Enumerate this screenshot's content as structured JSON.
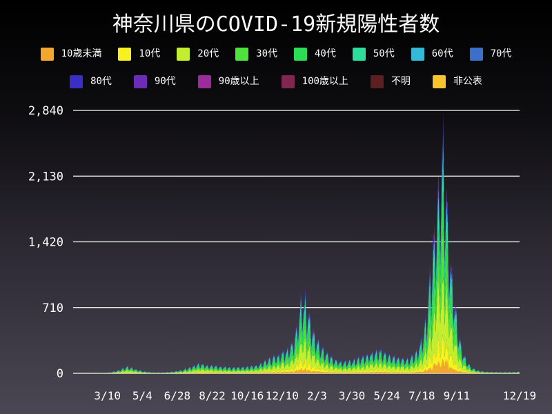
{
  "canvas": {
    "bg_top": "#000000",
    "bg_bottom": "#4a4653",
    "text_color": "#ffffff",
    "grid_color": "#ffffff"
  },
  "chart_data": {
    "type": "area",
    "subtype": "stacked-daily-bars",
    "title": "神奈川県のCOVID-19新規陽性者数",
    "xlabel": "",
    "ylabel": "",
    "grid": true,
    "legend_position": "top",
    "ylim": [
      0,
      2840
    ],
    "yticks": [
      {
        "value": 0,
        "label": "0"
      },
      {
        "value": 710,
        "label": "710"
      },
      {
        "value": 1420,
        "label": "1,420"
      },
      {
        "value": 2130,
        "label": "2,130"
      },
      {
        "value": 2840,
        "label": "2,840"
      }
    ],
    "x_range": {
      "start": "2020-01-16",
      "end": "2021-12-19"
    },
    "xticks": [
      {
        "date": "2020-03-10",
        "label": "3/10"
      },
      {
        "date": "2020-05-04",
        "label": "5/4"
      },
      {
        "date": "2020-06-28",
        "label": "6/28"
      },
      {
        "date": "2020-08-22",
        "label": "8/22"
      },
      {
        "date": "2020-10-16",
        "label": "10/16"
      },
      {
        "date": "2020-12-10",
        "label": "12/10"
      },
      {
        "date": "2021-02-03",
        "label": "2/3"
      },
      {
        "date": "2021-03-30",
        "label": "3/30"
      },
      {
        "date": "2021-05-24",
        "label": "5/24"
      },
      {
        "date": "2021-07-18",
        "label": "7/18"
      },
      {
        "date": "2021-09-11",
        "label": "9/11"
      },
      {
        "date": "2021-12-19",
        "label": "12/19"
      }
    ],
    "series": [
      {
        "name": "10歳未満",
        "color": "#f3a72e",
        "share": 0.055
      },
      {
        "name": "10代",
        "color": "#f8f01f",
        "share": 0.105
      },
      {
        "name": "20代",
        "color": "#c2ee2f",
        "share": 0.255
      },
      {
        "name": "30代",
        "color": "#50e23c",
        "share": 0.17
      },
      {
        "name": "40代",
        "color": "#2bdc55",
        "share": 0.15
      },
      {
        "name": "50代",
        "color": "#2edc9b",
        "share": 0.115
      },
      {
        "name": "60代",
        "color": "#33bad8",
        "share": 0.055
      },
      {
        "name": "70代",
        "color": "#3a70cb",
        "share": 0.042
      },
      {
        "name": "80代",
        "color": "#3a2ec4",
        "share": 0.03
      },
      {
        "name": "90代",
        "color": "#6c2cb5",
        "share": 0.013
      },
      {
        "name": "90歳以上",
        "color": "#9b2c9b",
        "share": 0.004
      },
      {
        "name": "100歳以上",
        "color": "#812551",
        "share": 0.001
      },
      {
        "name": "不明",
        "color": "#5c1f22",
        "share": 0.003
      },
      {
        "name": "非公表",
        "color": "#f6c42f",
        "share": 0.002
      }
    ],
    "daily_total_envelope": [
      [
        "2020-01-16",
        1
      ],
      [
        "2020-02-15",
        2
      ],
      [
        "2020-03-01",
        5
      ],
      [
        "2020-03-15",
        12
      ],
      [
        "2020-03-28",
        40
      ],
      [
        "2020-04-11",
        85
      ],
      [
        "2020-04-22",
        55
      ],
      [
        "2020-05-05",
        25
      ],
      [
        "2020-05-20",
        10
      ],
      [
        "2020-06-05",
        10
      ],
      [
        "2020-06-20",
        20
      ],
      [
        "2020-07-05",
        40
      ],
      [
        "2020-07-18",
        75
      ],
      [
        "2020-08-01",
        120
      ],
      [
        "2020-08-15",
        105
      ],
      [
        "2020-09-01",
        85
      ],
      [
        "2020-09-20",
        75
      ],
      [
        "2020-10-10",
        80
      ],
      [
        "2020-11-01",
        100
      ],
      [
        "2020-11-15",
        160
      ],
      [
        "2020-12-01",
        220
      ],
      [
        "2020-12-15",
        280
      ],
      [
        "2020-12-26",
        380
      ],
      [
        "2021-01-01",
        520
      ],
      [
        "2021-01-09",
        950
      ],
      [
        "2021-01-16",
        900
      ],
      [
        "2021-01-23",
        650
      ],
      [
        "2021-02-01",
        450
      ],
      [
        "2021-02-14",
        280
      ],
      [
        "2021-03-01",
        180
      ],
      [
        "2021-03-15",
        140
      ],
      [
        "2021-04-01",
        160
      ],
      [
        "2021-04-15",
        210
      ],
      [
        "2021-05-01",
        260
      ],
      [
        "2021-05-12",
        295
      ],
      [
        "2021-05-25",
        240
      ],
      [
        "2021-06-10",
        190
      ],
      [
        "2021-06-25",
        175
      ],
      [
        "2021-07-08",
        250
      ],
      [
        "2021-07-18",
        420
      ],
      [
        "2021-07-25",
        700
      ],
      [
        "2021-07-31",
        1200
      ],
      [
        "2021-08-07",
        1800
      ],
      [
        "2021-08-14",
        2300
      ],
      [
        "2021-08-20",
        2878
      ],
      [
        "2021-08-26",
        2200
      ],
      [
        "2021-09-02",
        1400
      ],
      [
        "2021-09-10",
        750
      ],
      [
        "2021-09-18",
        350
      ],
      [
        "2021-09-26",
        160
      ],
      [
        "2021-10-05",
        70
      ],
      [
        "2021-10-15",
        35
      ],
      [
        "2021-10-25",
        20
      ],
      [
        "2021-11-10",
        16
      ],
      [
        "2021-11-25",
        13
      ],
      [
        "2021-12-10",
        16
      ],
      [
        "2021-12-19",
        20
      ]
    ]
  }
}
